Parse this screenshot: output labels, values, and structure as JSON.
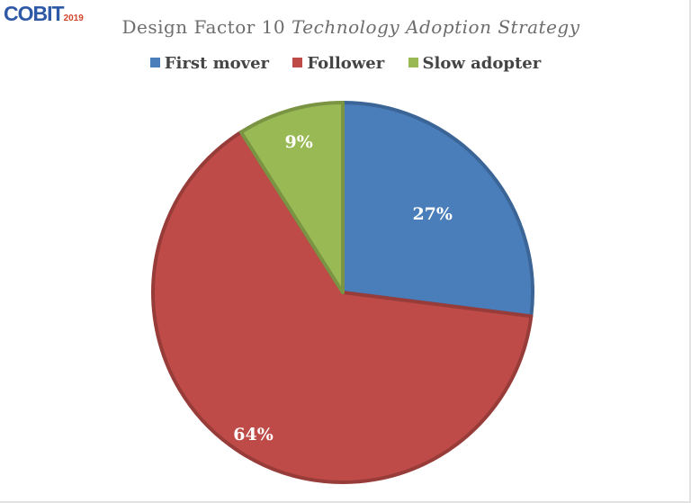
{
  "logo": {
    "text": "COBIT",
    "year": "2019"
  },
  "chart_data": {
    "type": "pie",
    "title_plain": "Design Factor 10 ",
    "title_italic": "Technology Adoption Strategy",
    "categories": [
      "First mover",
      "Follower",
      "Slow adopter"
    ],
    "values": [
      27,
      64,
      9
    ],
    "labels": [
      "27%",
      "64%",
      "9%"
    ],
    "colors": [
      "#4a7ebb",
      "#be4b48",
      "#98b954"
    ],
    "legend_position": "top"
  }
}
